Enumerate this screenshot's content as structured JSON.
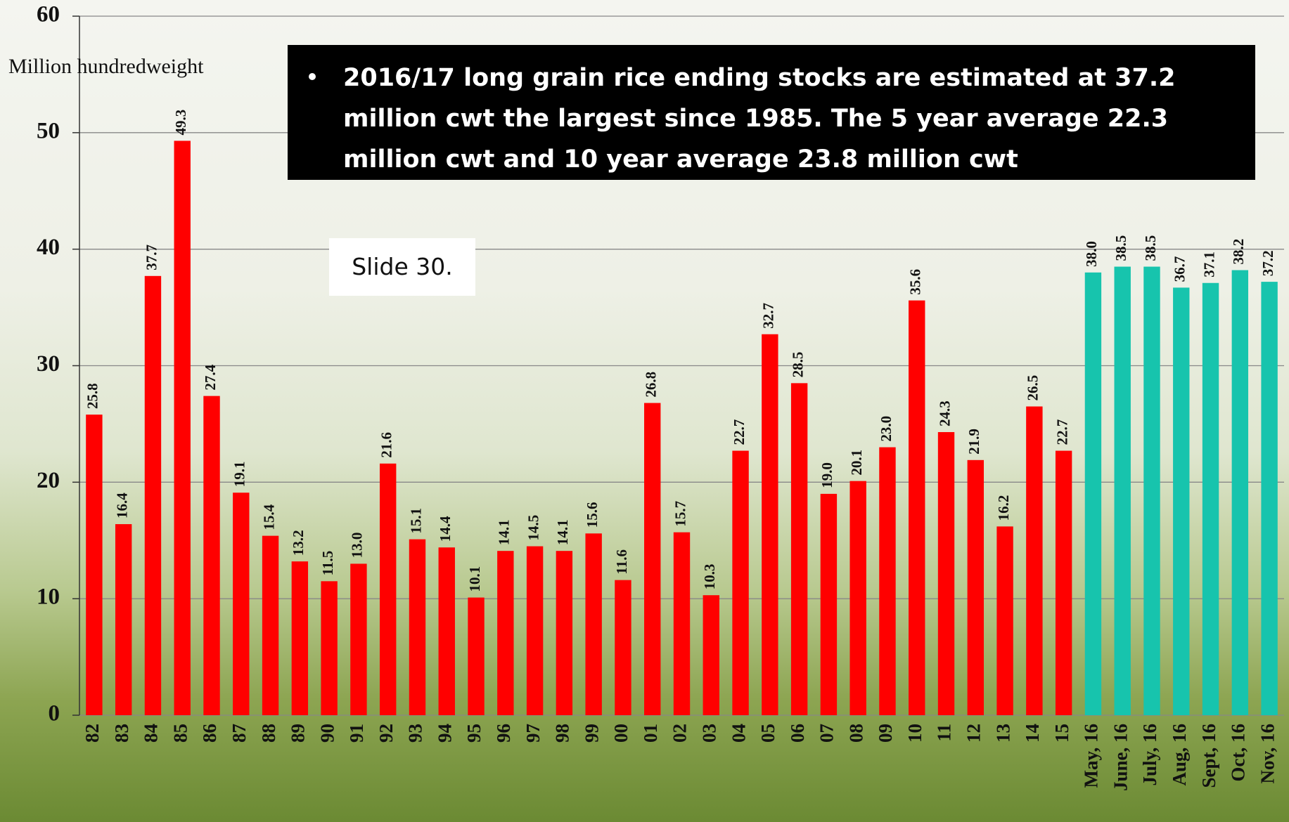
{
  "chart_data": {
    "type": "bar",
    "y_axis_label": "Million hundredweight",
    "annotation": "2016/17 long grain rice ending stocks are estimated at 37.2 million cwt the largest since 1985. The 5 year average 22.3 million cwt and 10 year average 23.8 million cwt",
    "note": "Slide 30.",
    "categories": [
      "82",
      "83",
      "84",
      "85",
      "86",
      "87",
      "88",
      "89",
      "90",
      "91",
      "92",
      "93",
      "94",
      "95",
      "96",
      "97",
      "98",
      "99",
      "00",
      "01",
      "02",
      "03",
      "04",
      "05",
      "06",
      "07",
      "08",
      "09",
      "10",
      "11",
      "12",
      "13",
      "14",
      "15",
      "May, 16",
      "June, 16",
      "July, 16",
      "Aug, 16",
      "Sept, 16",
      "Oct, 16",
      "Nov, 16"
    ],
    "values": [
      25.8,
      16.4,
      37.7,
      49.3,
      27.4,
      19.1,
      15.4,
      13.2,
      11.5,
      13.0,
      21.6,
      15.1,
      14.4,
      10.1,
      14.1,
      14.5,
      14.1,
      15.6,
      11.6,
      26.8,
      15.7,
      10.3,
      22.7,
      32.7,
      28.5,
      19.0,
      20.1,
      23.0,
      35.6,
      24.3,
      21.9,
      16.2,
      26.5,
      22.7,
      38.0,
      38.5,
      38.5,
      36.7,
      37.1,
      38.2,
      37.2
    ],
    "value_labels": [
      "25.8",
      "16.4",
      "37.7",
      "49.3",
      "27.4",
      "19.1",
      "15.4",
      "13.2",
      "11.5",
      "13.0",
      "21.6",
      "15.1",
      "14.4",
      "10.1",
      "14.1",
      "14.5",
      "14.1",
      "15.6",
      "11.6",
      "26.8",
      "15.7",
      "10.3",
      "22.7",
      "32.7",
      "28.5",
      "19.0",
      "20.1",
      "23.0",
      "35.6",
      "24.3",
      "21.9",
      "16.2",
      "26.5",
      "22.7",
      "38.0",
      "38.5",
      "38.5",
      "36.7",
      "37.1",
      "38.2",
      "37.2"
    ],
    "colors": [
      "#ff0000",
      "#ff0000",
      "#ff0000",
      "#ff0000",
      "#ff0000",
      "#ff0000",
      "#ff0000",
      "#ff0000",
      "#ff0000",
      "#ff0000",
      "#ff0000",
      "#ff0000",
      "#ff0000",
      "#ff0000",
      "#ff0000",
      "#ff0000",
      "#ff0000",
      "#ff0000",
      "#ff0000",
      "#ff0000",
      "#ff0000",
      "#ff0000",
      "#ff0000",
      "#ff0000",
      "#ff0000",
      "#ff0000",
      "#ff0000",
      "#ff0000",
      "#ff0000",
      "#ff0000",
      "#ff0000",
      "#ff0000",
      "#ff0000",
      "#ff0000",
      "#17c4ad",
      "#17c4ad",
      "#17c4ad",
      "#17c4ad",
      "#17c4ad",
      "#17c4ad",
      "#17c4ad"
    ],
    "ylim": [
      0,
      60
    ],
    "yticks": [
      0,
      10,
      20,
      30,
      40,
      50,
      60
    ],
    "grid": true
  }
}
